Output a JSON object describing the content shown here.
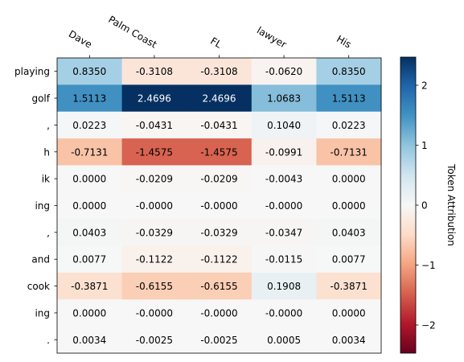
{
  "chart_data": {
    "type": "heatmap",
    "x_labels": [
      "Dave",
      "Palm Coast",
      "FL",
      "lawyer",
      "His"
    ],
    "y_labels": [
      "playing",
      "golf",
      ",",
      "h",
      "ik",
      "ing",
      ",",
      "and",
      "cook",
      "ing",
      "."
    ],
    "values": [
      [
        0.835,
        -0.3108,
        -0.3108,
        -0.062,
        0.835
      ],
      [
        1.5113,
        2.4696,
        2.4696,
        1.0683,
        1.5113
      ],
      [
        0.0223,
        -0.0431,
        -0.0431,
        0.104,
        0.0223
      ],
      [
        -0.7131,
        -1.4575,
        -1.4575,
        -0.0991,
        -0.7131
      ],
      [
        0.0,
        -0.0209,
        -0.0209,
        -0.0043,
        0.0
      ],
      [
        0.0,
        -0.0,
        -0.0,
        -0.0,
        0.0
      ],
      [
        0.0403,
        -0.0329,
        -0.0329,
        -0.0347,
        0.0403
      ],
      [
        0.0077,
        -0.1122,
        -0.1122,
        -0.0115,
        0.0077
      ],
      [
        -0.3871,
        -0.6155,
        -0.6155,
        0.1908,
        -0.3871
      ],
      [
        0.0,
        -0.0,
        -0.0,
        -0.0,
        0.0
      ],
      [
        0.0034,
        -0.0025,
        -0.0025,
        0.0005,
        0.0034
      ]
    ],
    "cell_labels": [
      [
        "0.8350",
        "-0.3108",
        "-0.3108",
        "-0.0620",
        "0.8350"
      ],
      [
        "1.5113",
        "2.4696",
        "2.4696",
        "1.0683",
        "1.5113"
      ],
      [
        "0.0223",
        "-0.0431",
        "-0.0431",
        "0.1040",
        "0.0223"
      ],
      [
        "-0.7131",
        "-1.4575",
        "-1.4575",
        "-0.0991",
        "-0.7131"
      ],
      [
        "0.0000",
        "-0.0209",
        "-0.0209",
        "-0.0043",
        "0.0000"
      ],
      [
        "0.0000",
        "-0.0000",
        "-0.0000",
        "-0.0000",
        "0.0000"
      ],
      [
        "0.0403",
        "-0.0329",
        "-0.0329",
        "-0.0347",
        "0.0403"
      ],
      [
        "0.0077",
        "-0.1122",
        "-0.1122",
        "-0.0115",
        "0.0077"
      ],
      [
        "-0.3871",
        "-0.6155",
        "-0.6155",
        "0.1908",
        "-0.3871"
      ],
      [
        "0.0000",
        "-0.0000",
        "-0.0000",
        "-0.0000",
        "0.0000"
      ],
      [
        "0.0034",
        "-0.0025",
        "-0.0025",
        "0.0005",
        "0.0034"
      ]
    ],
    "colorbar": {
      "label": "Token Attribution",
      "vmin": -2.4696,
      "vmax": 2.4696,
      "ticks": [
        2,
        1,
        0,
        -1,
        -2
      ],
      "tick_labels": [
        "2",
        "1",
        "0",
        "−1",
        "−2"
      ],
      "colormap": "RdBu"
    },
    "x_axis_position": "top",
    "x_label_rotation": "-30deg",
    "grid": false
  }
}
